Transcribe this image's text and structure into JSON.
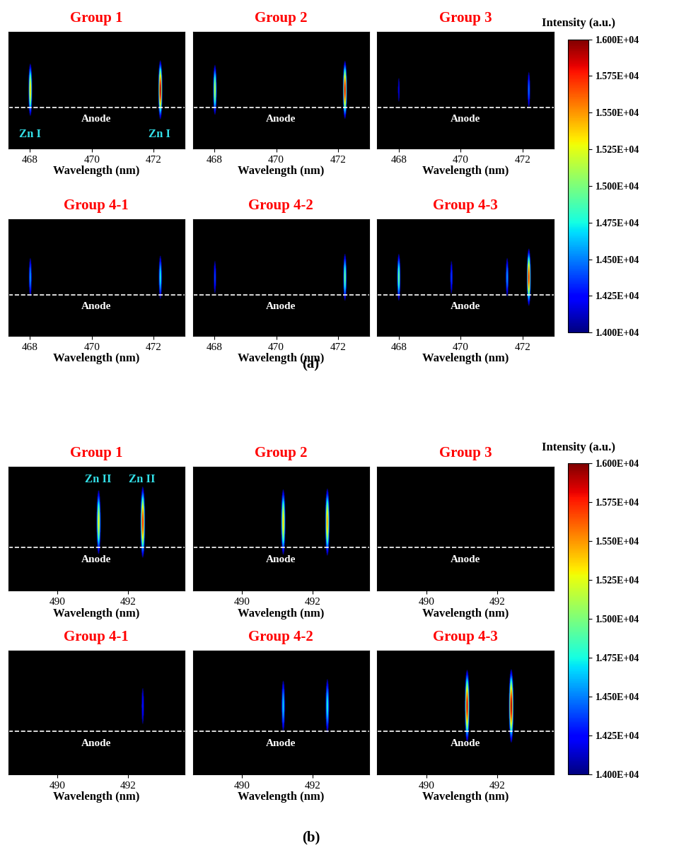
{
  "chart_data": [
    {
      "type": "image",
      "part": "(a)",
      "title": "Group 1",
      "xlabel": "Wavelength (nm)",
      "xlim": [
        467.3,
        473.0
      ],
      "xticks": [
        468,
        470,
        472
      ],
      "tick_labels": "x",
      "reference_label": "Anode",
      "lines": [
        {
          "wavelength": 468.0,
          "intensity": 15400,
          "label": "Zn I"
        },
        {
          "wavelength": 472.2,
          "intensity": 16000,
          "label": "Zn I"
        }
      ]
    },
    {
      "type": "image",
      "part": "(a)",
      "title": "Group 2",
      "xlabel": "Wavelength (nm)",
      "xlim": [
        467.3,
        473.0
      ],
      "xticks": [
        468,
        470,
        472
      ],
      "tick_labels": "x",
      "reference_label": "Anode",
      "lines": [
        {
          "wavelength": 468.0,
          "intensity": 15200
        },
        {
          "wavelength": 472.2,
          "intensity": 15900
        }
      ]
    },
    {
      "type": "image",
      "part": "(a)",
      "title": "Group 3",
      "xlabel": "Wavelength (nm)",
      "xlim": [
        467.3,
        473.0
      ],
      "xticks": [
        468,
        470,
        472
      ],
      "tick_labels": "x",
      "reference_label": "Anode",
      "lines": [
        {
          "wavelength": 468.0,
          "intensity": 14200
        },
        {
          "wavelength": 472.2,
          "intensity": 14500
        }
      ]
    },
    {
      "type": "image",
      "part": "(a)",
      "title": "Group 4-1",
      "xlabel": "Wavelength (nm)",
      "xlim": [
        467.3,
        473.0
      ],
      "xticks": [
        468,
        470,
        472
      ],
      "tick_labels": "x",
      "reference_label": "Anode",
      "lines": [
        {
          "wavelength": 468.0,
          "intensity": 14600
        },
        {
          "wavelength": 472.2,
          "intensity": 14800
        }
      ]
    },
    {
      "type": "image",
      "part": "(a)",
      "title": "Group 4-2",
      "xlabel": "Wavelength (nm)",
      "xlim": [
        467.3,
        473.0
      ],
      "xticks": [
        468,
        470,
        472
      ],
      "tick_labels": "x",
      "reference_label": "Anode",
      "lines": [
        {
          "wavelength": 468.0,
          "intensity": 14400
        },
        {
          "wavelength": 472.2,
          "intensity": 15000
        }
      ]
    },
    {
      "type": "image",
      "part": "(a)",
      "title": "Group 4-3",
      "xlabel": "Wavelength (nm)",
      "xlim": [
        467.3,
        473.0
      ],
      "xticks": [
        468,
        470,
        472
      ],
      "tick_labels": "x",
      "reference_label": "Anode",
      "lines": [
        {
          "wavelength": 468.0,
          "intensity": 15000
        },
        {
          "wavelength": 469.7,
          "intensity": 14400
        },
        {
          "wavelength": 471.5,
          "intensity": 14600
        },
        {
          "wavelength": 472.2,
          "intensity": 15800
        }
      ]
    },
    {
      "type": "image",
      "part": "(b)",
      "title": "Group 1",
      "xlabel": "Wavelength (nm)",
      "xlim": [
        488.6,
        493.6
      ],
      "xticks": [
        490,
        492
      ],
      "tick_labels": "x",
      "reference_label": "Anode",
      "lines": [
        {
          "wavelength": 491.15,
          "intensity": 15300,
          "label": "Zn II"
        },
        {
          "wavelength": 492.4,
          "intensity": 15800,
          "label": "Zn II"
        }
      ]
    },
    {
      "type": "image",
      "part": "(b)",
      "title": "Group 2",
      "xlabel": "Wavelength (nm)",
      "xlim": [
        488.6,
        493.6
      ],
      "xticks": [
        490,
        492
      ],
      "tick_labels": "x",
      "reference_label": "Anode",
      "lines": [
        {
          "wavelength": 491.15,
          "intensity": 15400
        },
        {
          "wavelength": 492.4,
          "intensity": 15500
        }
      ]
    },
    {
      "type": "image",
      "part": "(b)",
      "title": "Group 3",
      "xlabel": "Wavelength (nm)",
      "xlim": [
        488.6,
        493.6
      ],
      "xticks": [
        490,
        492
      ],
      "tick_labels": "x",
      "reference_label": "Anode",
      "lines": []
    },
    {
      "type": "image",
      "part": "(b)",
      "title": "Group 4-1",
      "xlabel": "Wavelength (nm)",
      "xlim": [
        488.6,
        493.6
      ],
      "xticks": [
        490,
        492
      ],
      "tick_labels": "x",
      "reference_label": "Anode",
      "lines": [
        {
          "wavelength": 492.4,
          "intensity": 14300
        }
      ]
    },
    {
      "type": "image",
      "part": "(b)",
      "title": "Group 4-2",
      "xlabel": "Wavelength (nm)",
      "xlim": [
        488.6,
        493.6
      ],
      "xticks": [
        490,
        492
      ],
      "tick_labels": "x",
      "reference_label": "Anode",
      "lines": [
        {
          "wavelength": 491.15,
          "intensity": 14700
        },
        {
          "wavelength": 492.4,
          "intensity": 14800
        }
      ]
    },
    {
      "type": "image",
      "part": "(b)",
      "title": "Group 4-3",
      "xlabel": "Wavelength (nm)",
      "xlim": [
        488.6,
        493.6
      ],
      "xticks": [
        490,
        492
      ],
      "tick_labels": "x",
      "reference_label": "Anode",
      "lines": [
        {
          "wavelength": 491.15,
          "intensity": 15900
        },
        {
          "wavelength": 492.4,
          "intensity": 16000
        }
      ]
    }
  ],
  "colorbar": {
    "label": "Intensity (a.u.)",
    "range": [
      14000,
      16000
    ],
    "ticks": [
      {
        "value": 14000,
        "label": "1.400E+04"
      },
      {
        "value": 14250,
        "label": "1.425E+04"
      },
      {
        "value": 14500,
        "label": "1.450E+04"
      },
      {
        "value": 14750,
        "label": "1.475E+04"
      },
      {
        "value": 15000,
        "label": "1.500E+04"
      },
      {
        "value": 15250,
        "label": "1.525E+04"
      },
      {
        "value": 15500,
        "label": "1.550E+04"
      },
      {
        "value": 15750,
        "label": "1.575E+04"
      },
      {
        "value": 16000,
        "label": "1.600E+04"
      }
    ]
  },
  "parts": [
    "(a)",
    "(b)"
  ]
}
